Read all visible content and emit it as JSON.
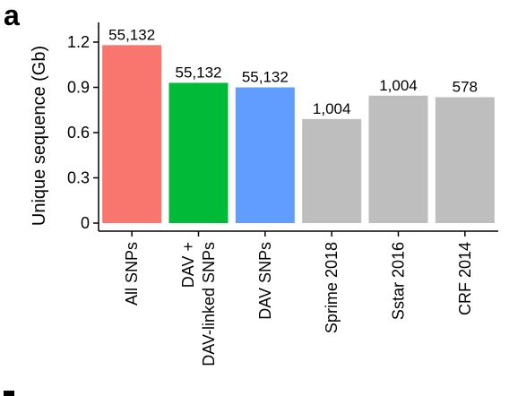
{
  "panel_label": "a",
  "chart_data": {
    "type": "bar",
    "title": "",
    "xlabel": "",
    "ylabel": "Unique sequence (Gb)",
    "ylim": [
      0,
      1.25
    ],
    "yticks": [
      "0",
      "0.3",
      "0.6",
      "0.9",
      "1.2"
    ],
    "grid": false,
    "categories": [
      [
        "All SNPs"
      ],
      [
        "DAV +",
        "DAV-linked SNPs"
      ],
      [
        "DAV SNPs"
      ],
      [
        "Sprime 2018"
      ],
      [
        "Sstar 2016"
      ],
      [
        "CRF 2014"
      ]
    ],
    "values": [
      1.18,
      0.93,
      0.9,
      0.69,
      0.845,
      0.835
    ],
    "data_labels": [
      "55,132",
      "55,132",
      "55,132",
      "1,004",
      "1,004",
      "578"
    ],
    "colors": [
      "#F8766D",
      "#00BA38",
      "#619CFF",
      "#BEBEBE",
      "#BEBEBE",
      "#BEBEBE"
    ]
  }
}
